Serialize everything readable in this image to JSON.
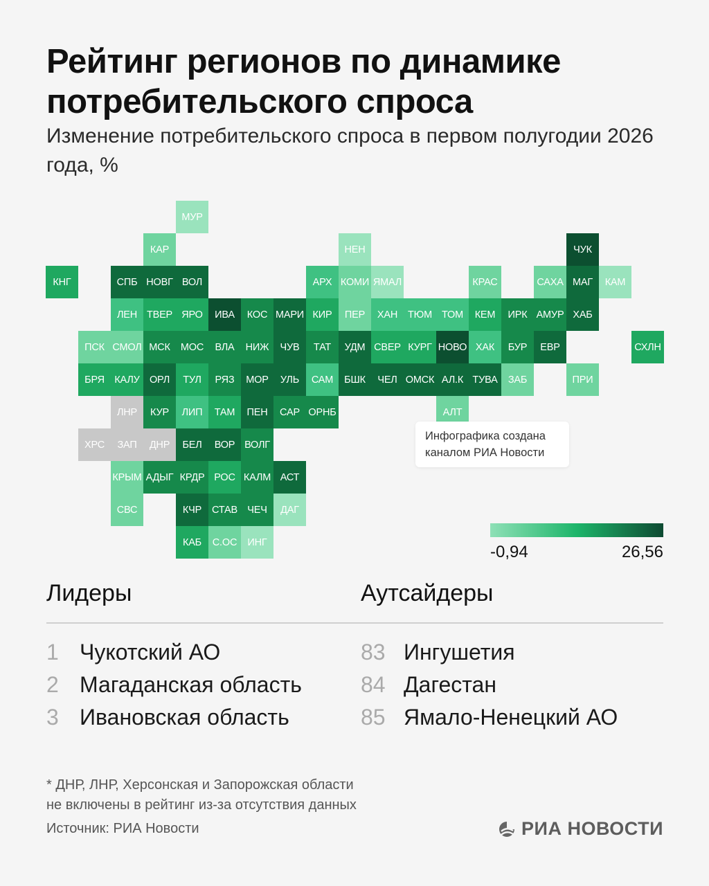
{
  "title_lines": [
    "Рейтинг регионов по динамике",
    "потребительского спроса"
  ],
  "subtitle": "Изменение потребительского спроса в первом полугодии 2026 года, %",
  "colors": {
    "c1": "#9ae3bd",
    "c2": "#6fd49f",
    "c3": "#3fc182",
    "c4": "#1fa860",
    "c5": "#16894b",
    "c6": "#0f6a3c",
    "c7": "#0c4f30",
    "na": "#c8c8c8"
  },
  "regions": [
    {
      "label": "МУР",
      "color": "c1"
    },
    {
      "label": "КАР",
      "color": "c2"
    },
    {
      "label": "НЕН",
      "color": "c1"
    },
    {
      "label": "ЧУК",
      "color": "c7"
    },
    {
      "label": "КНГ",
      "color": "c4"
    },
    {
      "label": "СПБ",
      "color": "c6"
    },
    {
      "label": "НОВГ",
      "color": "c6"
    },
    {
      "label": "ВОЛ",
      "color": "c6"
    },
    {
      "label": "АРХ",
      "color": "c3"
    },
    {
      "label": "КОМИ",
      "color": "c2"
    },
    {
      "label": "ЯМАЛ",
      "color": "c1"
    },
    {
      "label": "КРАС",
      "color": "c2"
    },
    {
      "label": "САХА",
      "color": "c2"
    },
    {
      "label": "МАГ",
      "color": "c6"
    },
    {
      "label": "КАМ",
      "color": "c1"
    },
    {
      "label": "ЛЕН",
      "color": "c3"
    },
    {
      "label": "ТВЕР",
      "color": "c4"
    },
    {
      "label": "ЯРО",
      "color": "c4"
    },
    {
      "label": "ИВА",
      "color": "c7"
    },
    {
      "label": "КОС",
      "color": "c5"
    },
    {
      "label": "МАРИ",
      "color": "c6"
    },
    {
      "label": "КИР",
      "color": "c4"
    },
    {
      "label": "ПЕР",
      "color": "c2"
    },
    {
      "label": "ХАН",
      "color": "c3"
    },
    {
      "label": "ТЮМ",
      "color": "c3"
    },
    {
      "label": "ТОМ",
      "color": "c3"
    },
    {
      "label": "КЕМ",
      "color": "c4"
    },
    {
      "label": "ИРК",
      "color": "c5"
    },
    {
      "label": "АМУР",
      "color": "c5"
    },
    {
      "label": "ХАБ",
      "color": "c6"
    },
    {
      "label": "ПСК",
      "color": "c2"
    },
    {
      "label": "СМОЛ",
      "color": "c2"
    },
    {
      "label": "МСК",
      "color": "c5"
    },
    {
      "label": "МОС",
      "color": "c5"
    },
    {
      "label": "ВЛА",
      "color": "c5"
    },
    {
      "label": "НИЖ",
      "color": "c5"
    },
    {
      "label": "ЧУВ",
      "color": "c6"
    },
    {
      "label": "ТАТ",
      "color": "c5"
    },
    {
      "label": "УДМ",
      "color": "c6"
    },
    {
      "label": "СВЕР",
      "color": "c4"
    },
    {
      "label": "КУРГ",
      "color": "c4"
    },
    {
      "label": "НОВО",
      "color": "c7"
    },
    {
      "label": "ХАК",
      "color": "c3"
    },
    {
      "label": "БУР",
      "color": "c5"
    },
    {
      "label": "ЕВР",
      "color": "c6"
    },
    {
      "label": "СХЛН",
      "color": "c4"
    },
    {
      "label": "БРЯ",
      "color": "c4"
    },
    {
      "label": "КАЛУ",
      "color": "c4"
    },
    {
      "label": "ОРЛ",
      "color": "c6"
    },
    {
      "label": "ТУЛ",
      "color": "c4"
    },
    {
      "label": "РЯЗ",
      "color": "c5"
    },
    {
      "label": "МОР",
      "color": "c6"
    },
    {
      "label": "УЛЬ",
      "color": "c6"
    },
    {
      "label": "САМ",
      "color": "c3"
    },
    {
      "label": "БШК",
      "color": "c6"
    },
    {
      "label": "ЧЕЛ",
      "color": "c6"
    },
    {
      "label": "ОМСК",
      "color": "c6"
    },
    {
      "label": "АЛ.К",
      "color": "c6"
    },
    {
      "label": "ТУВА",
      "color": "c6"
    },
    {
      "label": "ЗАБ",
      "color": "c2"
    },
    {
      "label": "ПРИ",
      "color": "c2"
    },
    {
      "label": "ЛНР",
      "color": "na"
    },
    {
      "label": "КУР",
      "color": "c5"
    },
    {
      "label": "ЛИП",
      "color": "c3"
    },
    {
      "label": "ТАМ",
      "color": "c4"
    },
    {
      "label": "ПЕН",
      "color": "c6"
    },
    {
      "label": "САР",
      "color": "c5"
    },
    {
      "label": "ОРНБ",
      "color": "c5"
    },
    {
      "label": "АЛТ",
      "color": "c2"
    },
    {
      "label": "ХРС",
      "color": "na"
    },
    {
      "label": "ЗАП",
      "color": "na"
    },
    {
      "label": "ДНР",
      "color": "na"
    },
    {
      "label": "БЕЛ",
      "color": "c6"
    },
    {
      "label": "ВОР",
      "color": "c6"
    },
    {
      "label": "ВОЛГ",
      "color": "c5"
    },
    {
      "label": "КРЫМ",
      "color": "c2"
    },
    {
      "label": "АДЫГ",
      "color": "c5"
    },
    {
      "label": "КРДР",
      "color": "c5"
    },
    {
      "label": "РОС",
      "color": "c4"
    },
    {
      "label": "КАЛМ",
      "color": "c5"
    },
    {
      "label": "АСТ",
      "color": "c6"
    },
    {
      "label": "СВС",
      "color": "c2"
    },
    {
      "label": "КЧР",
      "color": "c6"
    },
    {
      "label": "СТАВ",
      "color": "c5"
    },
    {
      "label": "ЧЕЧ",
      "color": "c5"
    },
    {
      "label": "ДАГ",
      "color": "c1"
    },
    {
      "label": "КАБ",
      "color": "c4"
    },
    {
      "label": "С.ОС",
      "color": "c2"
    },
    {
      "label": "ИНГ",
      "color": "c1"
    }
  ],
  "note_lines": [
    "Инфографика создана",
    "каналом РИА Новости"
  ],
  "legend": {
    "min": "-0,94",
    "max": "26,56"
  },
  "leaders": {
    "title": "Лидеры",
    "items": [
      {
        "rank": "1",
        "name": "Чукотский АО"
      },
      {
        "rank": "2",
        "name": "Магаданская область"
      },
      {
        "rank": "3",
        "name": "Ивановская область"
      }
    ]
  },
  "outsiders": {
    "title": "Аутсайдеры",
    "items": [
      {
        "rank": "83",
        "name": "Ингушетия"
      },
      {
        "rank": "84",
        "name": "Дагестан"
      },
      {
        "rank": "85",
        "name": "Ямало-Ненецкий АО"
      }
    ]
  },
  "footnote_lines": [
    "* ДНР, ЛНР, Херсонская и Запорожская области",
    "не включены в рейтинг из-за отсутствия данных"
  ],
  "source": "Источник: РИА Новости",
  "brand": "РИА НОВОСТИ"
}
